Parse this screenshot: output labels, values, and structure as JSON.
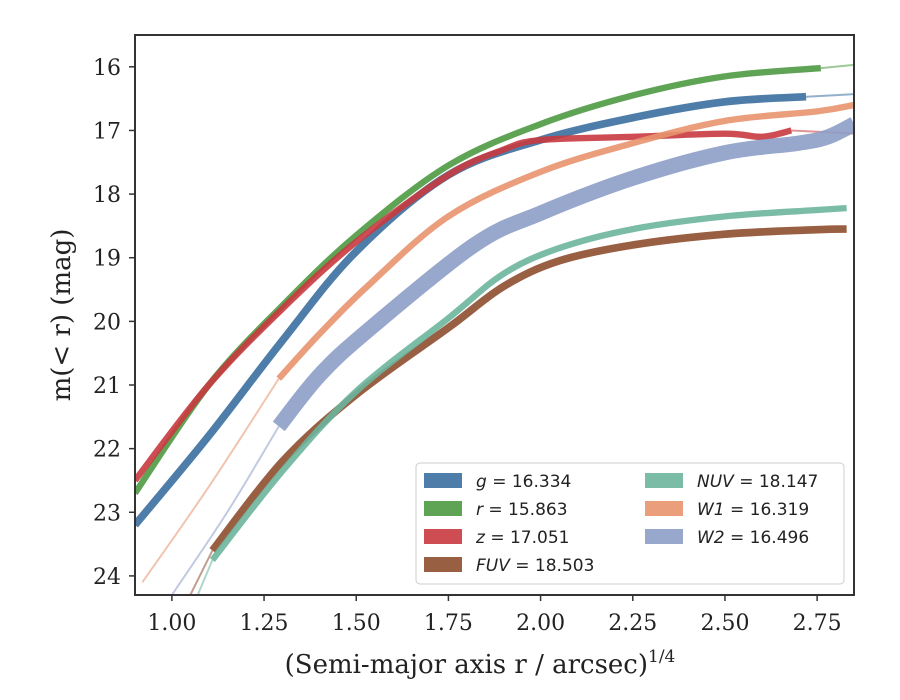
{
  "chart_data": {
    "type": "line",
    "xlabel": "(Semi-major axis r / arcsec)",
    "xlabel_exponent": "1/4",
    "ylabel": "m(< r) (mag)",
    "xlim": [
      0.9,
      2.85
    ],
    "ylim": [
      24.3,
      15.5
    ],
    "y_inverted": true,
    "grid": false,
    "legend_position": "lower-right",
    "xticks": [
      "1.00",
      "1.25",
      "1.50",
      "1.75",
      "2.00",
      "2.25",
      "2.50",
      "2.75"
    ],
    "yticks": [
      "16",
      "17",
      "18",
      "19",
      "20",
      "21",
      "22",
      "23",
      "24"
    ],
    "series": [
      {
        "legend": "g = 16.334",
        "color": "#3a6f9f",
        "band": 0.12,
        "x": [
          0.9,
          1.1,
          1.3,
          1.5,
          1.75,
          2.0,
          2.25,
          2.5,
          2.72
        ],
        "y": [
          23.2,
          21.8,
          20.3,
          18.9,
          17.7,
          17.15,
          16.8,
          16.55,
          16.47
        ],
        "extend_x": [
          2.72,
          2.85
        ],
        "extend_y": [
          16.47,
          16.43
        ]
      },
      {
        "legend": "r = 15.863",
        "color": "#4e9a43",
        "band": 0.1,
        "x": [
          0.9,
          1.1,
          1.3,
          1.5,
          1.75,
          2.0,
          2.25,
          2.5,
          2.76
        ],
        "y": [
          22.7,
          21.0,
          19.75,
          18.65,
          17.55,
          16.9,
          16.45,
          16.15,
          16.02
        ],
        "extend_x": [
          2.76,
          2.85
        ],
        "extend_y": [
          16.02,
          15.97
        ]
      },
      {
        "legend": "z = 17.051",
        "color": "#c83a3f",
        "band": 0.1,
        "x": [
          0.9,
          1.1,
          1.3,
          1.5,
          1.75,
          1.9,
          2.0,
          2.25,
          2.5,
          2.6,
          2.68
        ],
        "y": [
          22.5,
          21.0,
          19.8,
          18.75,
          17.7,
          17.3,
          17.15,
          17.1,
          17.05,
          17.1,
          17.0
        ],
        "extend_x": [
          2.68,
          2.85
        ],
        "extend_y": [
          17.0,
          17.05
        ]
      },
      {
        "legend": "FUV = 18.503",
        "color": "#8e4e2f",
        "band": 0.12,
        "x": [
          1.11,
          1.3,
          1.5,
          1.75,
          1.9,
          2.05,
          2.25,
          2.5,
          2.75,
          2.83
        ],
        "y": [
          23.6,
          22.2,
          21.15,
          20.1,
          19.45,
          19.05,
          18.8,
          18.63,
          18.56,
          18.55
        ],
        "extend_x": [
          1.05,
          1.11
        ],
        "extend_y": [
          24.3,
          23.6
        ]
      },
      {
        "legend": "NUV = 18.147",
        "color": "#6bb59c",
        "band": 0.1,
        "x": [
          1.11,
          1.3,
          1.5,
          1.75,
          1.9,
          2.05,
          2.25,
          2.5,
          2.75,
          2.83
        ],
        "y": [
          23.75,
          22.35,
          21.1,
          19.95,
          19.25,
          18.85,
          18.55,
          18.35,
          18.25,
          18.22
        ],
        "extend_x": [
          1.07,
          1.11
        ],
        "extend_y": [
          24.3,
          23.75
        ]
      },
      {
        "legend": "W1 = 16.319",
        "color": "#e8946e",
        "band": 0.1,
        "x": [
          1.29,
          1.4,
          1.53,
          1.75,
          2.0,
          2.25,
          2.5,
          2.75,
          2.85
        ],
        "y": [
          20.9,
          20.2,
          19.45,
          18.35,
          17.65,
          17.2,
          16.85,
          16.7,
          16.6
        ],
        "extend_x": [
          0.92,
          1.1,
          1.29
        ],
        "extend_y": [
          24.1,
          22.6,
          20.9
        ]
      },
      {
        "legend": "W2 = 16.496",
        "color": "#8d9fc7",
        "band": 0.24,
        "x": [
          1.29,
          1.4,
          1.53,
          1.82,
          2.0,
          2.25,
          2.5,
          2.7,
          2.78,
          2.85
        ],
        "y": [
          21.65,
          20.85,
          20.15,
          18.8,
          18.3,
          17.75,
          17.35,
          17.2,
          17.1,
          16.9
        ],
        "extend_x": [
          1.0,
          1.15,
          1.29
        ],
        "extend_y": [
          24.3,
          23.0,
          21.65
        ]
      }
    ]
  }
}
